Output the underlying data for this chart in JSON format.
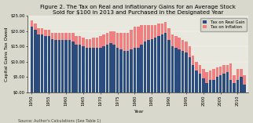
{
  "title_line1": "Figure 2. The Tax on Real and Inflationary Gains for an Average Stock",
  "title_line2": "Sold for $100 in 2013 and Purchased in the Designated Year",
  "xlabel": "Year",
  "ylabel": "Capital Gains Tax Owed",
  "source": "Source: Author's Calculations (See Table 1)",
  "years": [
    1950,
    1951,
    1952,
    1953,
    1954,
    1955,
    1956,
    1957,
    1958,
    1959,
    1960,
    1961,
    1962,
    1963,
    1964,
    1965,
    1966,
    1967,
    1968,
    1969,
    1970,
    1971,
    1972,
    1973,
    1974,
    1975,
    1976,
    1977,
    1978,
    1979,
    1980,
    1981,
    1982,
    1983,
    1984,
    1985,
    1986,
    1987,
    1988,
    1989,
    1990,
    1991,
    1992,
    1993,
    1994,
    1995,
    1996,
    1997,
    1998,
    1999,
    2000,
    2001,
    2002,
    2003,
    2004,
    2005,
    2006,
    2007,
    2008,
    2009,
    2010,
    2011,
    2012
  ],
  "tax_real": [
    21.5,
    20.5,
    19.0,
    19.0,
    18.5,
    18.5,
    17.5,
    17.0,
    17.0,
    17.0,
    17.0,
    17.0,
    16.5,
    15.5,
    15.5,
    15.0,
    14.5,
    14.5,
    14.5,
    14.5,
    14.5,
    15.0,
    15.5,
    16.0,
    15.5,
    14.5,
    14.0,
    13.5,
    13.5,
    14.0,
    14.5,
    14.5,
    15.5,
    16.5,
    17.0,
    17.5,
    18.0,
    18.5,
    19.0,
    19.5,
    17.0,
    15.0,
    14.5,
    14.0,
    13.5,
    13.0,
    11.5,
    9.0,
    7.0,
    6.0,
    4.5,
    3.0,
    4.0,
    4.0,
    5.0,
    5.5,
    6.0,
    6.5,
    4.0,
    3.0,
    4.0,
    5.0,
    2.5
  ],
  "tax_inflation": [
    2.0,
    2.0,
    2.0,
    2.0,
    2.0,
    2.0,
    2.0,
    2.5,
    2.5,
    2.5,
    2.5,
    2.5,
    3.0,
    3.0,
    3.0,
    3.0,
    3.0,
    3.0,
    3.5,
    3.5,
    4.0,
    4.0,
    4.0,
    4.0,
    4.5,
    5.0,
    5.5,
    6.0,
    6.0,
    6.5,
    7.0,
    7.0,
    6.5,
    5.5,
    5.0,
    4.5,
    4.0,
    4.0,
    3.5,
    3.5,
    4.0,
    4.0,
    4.0,
    4.0,
    3.5,
    3.5,
    3.5,
    3.0,
    3.0,
    3.0,
    3.0,
    3.5,
    3.0,
    3.5,
    3.0,
    3.0,
    3.0,
    2.5,
    5.5,
    2.5,
    3.5,
    2.5,
    3.0
  ],
  "ylim": [
    0,
    25
  ],
  "yticks": [
    0,
    5,
    10,
    15,
    20,
    25
  ],
  "ytick_labels": [
    "$0.00",
    "$5.00",
    "$10.00",
    "$15.00",
    "$20.00",
    "$25.00"
  ],
  "color_real": "#2B4C7E",
  "color_inflation": "#F08080",
  "legend_real": "Tax on Real Gain",
  "legend_inflation": "Tax on Inflation",
  "bg_color": "#D8D8CC",
  "plot_bg_color": "#E8E8DE",
  "title_fontsize": 5.2,
  "axis_fontsize": 4.2,
  "tick_fontsize": 3.8,
  "source_fontsize": 3.5
}
